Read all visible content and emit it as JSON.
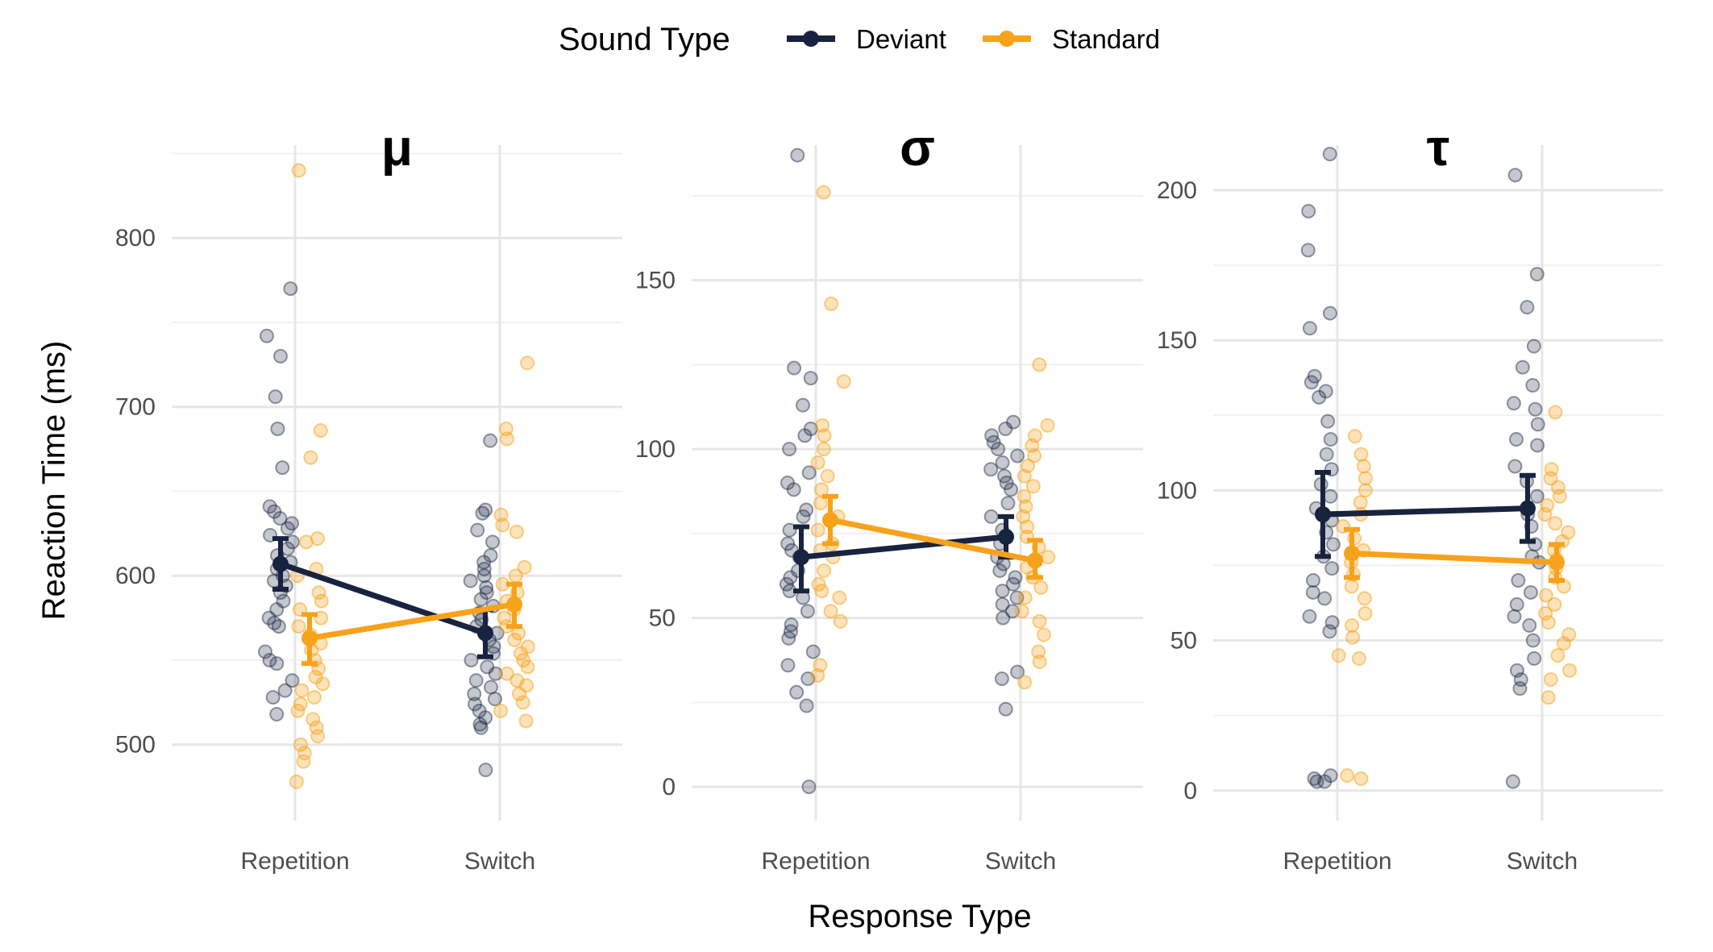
{
  "legend": {
    "title": "Sound Type",
    "items": [
      {
        "name": "Deviant",
        "color": "#18233f"
      },
      {
        "name": "Standard",
        "color": "#f7a21b"
      }
    ]
  },
  "axes": {
    "xlabel": "Response Type",
    "ylabel": "Reaction Time (ms)"
  },
  "chart_data": [
    {
      "type": "line",
      "title": "μ",
      "categories": [
        "Repetition",
        "Switch"
      ],
      "ylim": [
        455,
        855
      ],
      "yticks": [
        500,
        600,
        700,
        800
      ],
      "series": [
        {
          "name": "Deviant",
          "means": [
            607,
            566
          ],
          "lower": [
            592,
            552
          ],
          "upper": [
            622,
            580
          ],
          "points": [
            [
              770,
              742,
              730,
              706,
              687,
              664,
              641,
              638,
              634,
              631,
              628,
              624,
              620,
              616,
              612,
              608,
              604,
              600,
              597,
              594,
              590,
              585,
              580,
              575,
              572,
              570,
              555,
              550,
              548,
              538,
              532,
              528,
              518
            ],
            [
              680,
              639,
              637,
              627,
              620,
              612,
              608,
              604,
              600,
              597,
              593,
              590,
              586,
              582,
              578,
              574,
              570,
              566,
              562,
              558,
              554,
              550,
              546,
              542,
              538,
              534,
              530,
              527,
              524,
              520,
              516,
              512,
              510,
              485
            ]
          ]
        },
        {
          "name": "Standard",
          "means": [
            563,
            583
          ],
          "lower": [
            548,
            570
          ],
          "upper": [
            577,
            595
          ]
        },
        {
          "name": "Standard points",
          "points": [
            [
              840,
              686,
              670,
              622,
              620,
              604,
              600,
              590,
              585,
              580,
              575,
              570,
              565,
              560,
              556,
              550,
              545,
              540,
              536,
              532,
              528,
              524,
              520,
              515,
              510,
              505,
              500,
              495,
              490,
              478
            ],
            [
              726,
              687,
              681,
              636,
              630,
              626,
              605,
              600,
              595,
              590,
              585,
              580,
              575,
              570,
              566,
              562,
              558,
              554,
              550,
              546,
              542,
              538,
              535,
              530,
              525,
              520,
              514
            ]
          ]
        }
      ]
    },
    {
      "type": "line",
      "title": "σ",
      "categories": [
        "Repetition",
        "Switch"
      ],
      "ylim": [
        -10,
        190
      ],
      "yticks": [
        0,
        50,
        100,
        150
      ],
      "series": [
        {
          "name": "Deviant",
          "means": [
            68,
            74
          ],
          "lower": [
            58,
            68
          ],
          "upper": [
            77,
            80
          ],
          "points": [
            [
              187,
              124,
              121,
              113,
              106,
              104,
              100,
              93,
              90,
              88,
              82,
              80,
              76,
              72,
              70,
              68,
              64,
              62,
              60,
              58,
              56,
              52,
              48,
              46,
              44,
              40,
              36,
              32,
              28,
              24,
              0
            ],
            [
              108,
              106,
              104,
              102,
              100,
              98,
              96,
              94,
              92,
              90,
              88,
              84,
              80,
              76,
              72,
              68,
              66,
              64,
              62,
              60,
              58,
              56,
              54,
              52,
              50,
              34,
              32,
              23
            ]
          ]
        },
        {
          "name": "Standard",
          "means": [
            79,
            67
          ],
          "lower": [
            72,
            62
          ],
          "upper": [
            86,
            73
          ]
        },
        {
          "name": "Standard points",
          "points": [
            [
              176,
              143,
              120,
              107,
              104,
              100,
              96,
              92,
              88,
              84,
              80,
              76,
              72,
              70,
              68,
              64,
              60,
              58,
              56,
              52,
              49,
              36,
              33
            ],
            [
              125,
              107,
              104,
              101,
              98,
              95,
              92,
              89,
              86,
              83,
              80,
              77,
              74,
              71,
              68,
              65,
              62,
              59,
              56,
              52,
              49,
              45,
              40,
              37,
              31
            ]
          ]
        }
      ]
    },
    {
      "type": "line",
      "title": "τ",
      "categories": [
        "Repetition",
        "Switch"
      ],
      "ylim": [
        -10,
        215
      ],
      "yticks": [
        0,
        50,
        100,
        150,
        200
      ],
      "series": [
        {
          "name": "Deviant",
          "means": [
            92,
            94
          ],
          "lower": [
            78,
            83
          ],
          "upper": [
            106,
            105
          ],
          "points": [
            [
              212,
              193,
              180,
              159,
              154,
              138,
              136,
              133,
              131,
              123,
              117,
              112,
              107,
              102,
              98,
              94,
              90,
              86,
              82,
              78,
              74,
              70,
              66,
              64,
              58,
              56,
              53,
              5,
              4,
              3,
              3
            ],
            [
              205,
              172,
              161,
              148,
              141,
              135,
              129,
              127,
              122,
              117,
              115,
              108,
              103,
              98,
              92,
              88,
              82,
              78,
              76,
              70,
              66,
              62,
              58,
              55,
              50,
              44,
              40,
              37,
              34,
              3
            ]
          ]
        },
        {
          "name": "Standard",
          "means": [
            79,
            76
          ],
          "lower": [
            71,
            70
          ],
          "upper": [
            87,
            82
          ]
        },
        {
          "name": "Standard points",
          "points": [
            [
              118,
              112,
              108,
              104,
              100,
              96,
              92,
              88,
              84,
              80,
              76,
              72,
              68,
              64,
              59,
              55,
              51,
              45,
              44,
              5,
              4
            ],
            [
              126,
              107,
              104,
              101,
              98,
              95,
              92,
              89,
              86,
              83,
              80,
              77,
              74,
              71,
              68,
              65,
              62,
              59,
              56,
              52,
              49,
              45,
              40,
              37,
              31
            ]
          ]
        }
      ]
    }
  ]
}
